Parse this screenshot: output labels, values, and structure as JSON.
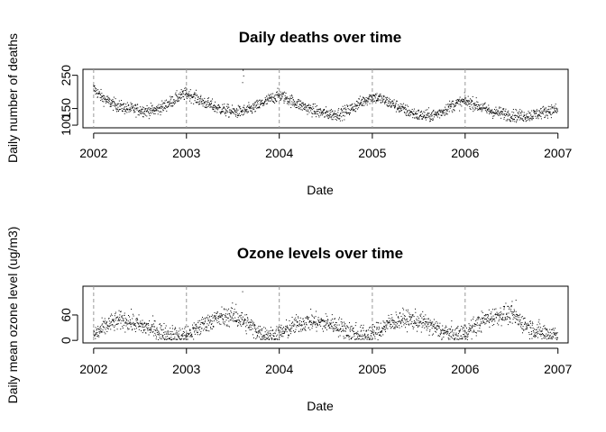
{
  "chart_data": [
    {
      "type": "scatter",
      "title": "Daily deaths over time",
      "xlabel": "Date",
      "ylabel": "Daily number of deaths",
      "x_ticks": [
        "2002",
        "2003",
        "2004",
        "2005",
        "2006",
        "2007"
      ],
      "y_ticks": [
        "100",
        "150",
        "250"
      ],
      "xlim": [
        "2001-11-20",
        "2007-02-10"
      ],
      "ylim": [
        92,
        268
      ],
      "year_separators": [
        "2002-01-01",
        "2003-01-01",
        "2004-01-01",
        "2005-01-01",
        "2006-01-01"
      ],
      "grid": false,
      "legend": "none",
      "marker_color": "#000000",
      "separator_color": "#999999",
      "series": [
        {
          "description_of_trend": "seasonal cycle, winter peaks",
          "x": [
            "2002-01-01",
            "2002-02-01",
            "2002-03-01",
            "2002-04-01",
            "2002-05-01",
            "2002-06-01",
            "2002-07-01",
            "2002-08-01",
            "2002-09-01",
            "2002-10-01",
            "2002-11-01",
            "2002-12-01",
            "2003-01-01",
            "2003-02-01",
            "2003-03-01",
            "2003-04-01",
            "2003-05-01",
            "2003-06-01",
            "2003-07-01",
            "2003-08-01",
            "2003-09-01",
            "2003-10-01",
            "2003-11-01",
            "2003-12-01",
            "2004-01-01",
            "2004-02-01",
            "2004-03-01",
            "2004-04-01",
            "2004-05-01",
            "2004-06-01",
            "2004-07-01",
            "2004-08-01",
            "2004-09-01",
            "2004-10-01",
            "2004-11-01",
            "2004-12-01",
            "2005-01-01",
            "2005-02-01",
            "2005-03-01",
            "2005-04-01",
            "2005-05-01",
            "2005-06-01",
            "2005-07-01",
            "2005-08-01",
            "2005-09-01",
            "2005-10-01",
            "2005-11-01",
            "2005-12-01",
            "2006-01-01",
            "2006-02-01",
            "2006-03-01",
            "2006-04-01",
            "2006-05-01",
            "2006-06-01",
            "2006-07-01",
            "2006-08-01",
            "2006-09-01",
            "2006-10-01",
            "2006-11-01",
            "2006-12-01"
          ],
          "y": [
            210,
            185,
            170,
            160,
            152,
            148,
            146,
            143,
            145,
            155,
            170,
            185,
            195,
            185,
            172,
            162,
            152,
            145,
            140,
            140,
            145,
            155,
            168,
            180,
            190,
            180,
            168,
            158,
            148,
            140,
            135,
            132,
            135,
            145,
            160,
            175,
            185,
            180,
            170,
            160,
            148,
            138,
            130,
            128,
            130,
            140,
            155,
            165,
            172,
            165,
            155,
            145,
            138,
            135,
            130,
            128,
            128,
            132,
            138,
            145
          ]
        }
      ],
      "outliers": [
        {
          "x": "2003-08-12",
          "y": 265
        },
        {
          "x": "2003-08-14",
          "y": 248
        },
        {
          "x": "2003-08-10",
          "y": 228
        }
      ]
    },
    {
      "type": "scatter",
      "title": "Ozone levels over time",
      "xlabel": "Date",
      "ylabel": "Daily mean ozone level (ug/m3)",
      "x_ticks": [
        "2002",
        "2003",
        "2004",
        "2005",
        "2006",
        "2007"
      ],
      "y_ticks": [
        "0",
        "60"
      ],
      "xlim": [
        "2001-11-20",
        "2007-02-10"
      ],
      "ylim": [
        -6,
        128
      ],
      "year_separators": [
        "2002-01-01",
        "2003-01-01",
        "2004-01-01",
        "2005-01-01",
        "2006-01-01"
      ],
      "grid": false,
      "legend": "none",
      "marker_color": "#000000",
      "separator_color": "#999999",
      "series": [
        {
          "description_of_trend": "seasonal cycle, summer peaks",
          "x": [
            "2002-01-01",
            "2002-02-01",
            "2002-03-01",
            "2002-04-01",
            "2002-05-01",
            "2002-06-01",
            "2002-07-01",
            "2002-08-01",
            "2002-09-01",
            "2002-10-01",
            "2002-11-01",
            "2002-12-01",
            "2003-01-01",
            "2003-02-01",
            "2003-03-01",
            "2003-04-01",
            "2003-05-01",
            "2003-06-01",
            "2003-07-01",
            "2003-08-01",
            "2003-09-01",
            "2003-10-01",
            "2003-11-01",
            "2003-12-01",
            "2004-01-01",
            "2004-02-01",
            "2004-03-01",
            "2004-04-01",
            "2004-05-01",
            "2004-06-01",
            "2004-07-01",
            "2004-08-01",
            "2004-09-01",
            "2004-10-01",
            "2004-11-01",
            "2004-12-01",
            "2005-01-01",
            "2005-02-01",
            "2005-03-01",
            "2005-04-01",
            "2005-05-01",
            "2005-06-01",
            "2005-07-01",
            "2005-08-01",
            "2005-09-01",
            "2005-10-01",
            "2005-11-01",
            "2005-12-01",
            "2006-01-01",
            "2006-02-01",
            "2006-03-01",
            "2006-04-01",
            "2006-05-01",
            "2006-06-01",
            "2006-07-01",
            "2006-08-01",
            "2006-09-01",
            "2006-10-01",
            "2006-11-01",
            "2006-12-01"
          ],
          "y": [
            12,
            25,
            38,
            45,
            48,
            42,
            35,
            30,
            25,
            18,
            12,
            10,
            12,
            22,
            35,
            45,
            52,
            55,
            58,
            50,
            38,
            25,
            15,
            12,
            15,
            25,
            35,
            42,
            45,
            42,
            40,
            38,
            30,
            22,
            15,
            12,
            15,
            25,
            38,
            45,
            50,
            48,
            45,
            40,
            30,
            22,
            15,
            12,
            18,
            30,
            42,
            52,
            58,
            62,
            60,
            48,
            35,
            25,
            18,
            15
          ]
        }
      ],
      "outliers": [
        {
          "x": "2003-08-10",
          "y": 115
        },
        {
          "x": "2006-07-20",
          "y": 95
        },
        {
          "x": "2006-07-05",
          "y": 92
        },
        {
          "x": "2003-07-15",
          "y": 85
        }
      ]
    }
  ]
}
